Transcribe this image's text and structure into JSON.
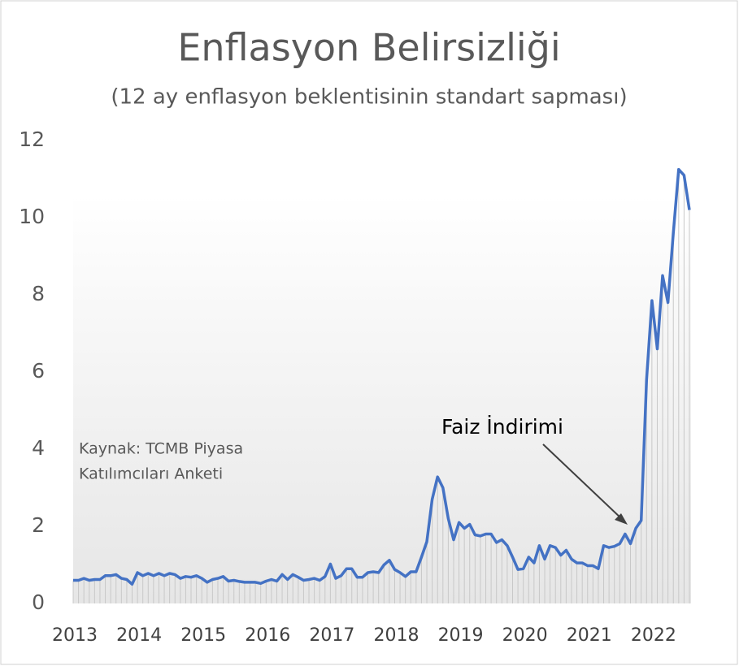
{
  "chart_data": {
    "type": "line",
    "title": "Enflasyon Belirsizliği",
    "subtitle": "(12 ay enflasyon beklentisinin standart sapması)",
    "source": [
      "Kaynak: TCMB Piyasa",
      "Katılımcıları Anketi"
    ],
    "annotation": "Faiz İndirimi",
    "color": "#4472c4",
    "ylim": [
      0,
      12
    ],
    "yticks": [
      0,
      2,
      4,
      6,
      8,
      10,
      12
    ],
    "categories": [
      "2013",
      null,
      null,
      null,
      null,
      null,
      null,
      null,
      null,
      null,
      null,
      null,
      "2014",
      null,
      null,
      null,
      null,
      null,
      null,
      null,
      null,
      null,
      null,
      null,
      "2015",
      null,
      null,
      null,
      null,
      null,
      null,
      null,
      null,
      null,
      null,
      null,
      "2016",
      null,
      null,
      null,
      null,
      null,
      null,
      null,
      null,
      null,
      null,
      null,
      "2017",
      null,
      null,
      null,
      null,
      null,
      null,
      null,
      null,
      null,
      null,
      null,
      "2018",
      null,
      null,
      null,
      null,
      null,
      null,
      null,
      null,
      null,
      null,
      null,
      "2019",
      null,
      null,
      null,
      null,
      null,
      null,
      null,
      null,
      null,
      null,
      null,
      "2020",
      null,
      null,
      null,
      null,
      null,
      null,
      null,
      null,
      null,
      null,
      null,
      "2021",
      null,
      null,
      null,
      null,
      null,
      null,
      null,
      null,
      null,
      null,
      null,
      "2022",
      null,
      null,
      null,
      null,
      null,
      null,
      null
    ],
    "values": [
      0.6,
      0.6,
      0.65,
      0.6,
      0.62,
      0.62,
      0.72,
      0.72,
      0.75,
      0.65,
      0.62,
      0.5,
      0.8,
      0.72,
      0.78,
      0.72,
      0.78,
      0.72,
      0.78,
      0.75,
      0.65,
      0.7,
      0.68,
      0.72,
      0.65,
      0.55,
      0.62,
      0.65,
      0.7,
      0.58,
      0.6,
      0.57,
      0.55,
      0.55,
      0.55,
      0.52,
      0.58,
      0.62,
      0.58,
      0.75,
      0.62,
      0.75,
      0.68,
      0.6,
      0.62,
      0.65,
      0.6,
      0.7,
      1.02,
      0.65,
      0.72,
      0.9,
      0.9,
      0.68,
      0.68,
      0.8,
      0.82,
      0.8,
      1.0,
      1.12,
      0.88,
      0.8,
      0.7,
      0.82,
      0.82,
      1.2,
      1.6,
      2.7,
      3.28,
      3.0,
      2.2,
      1.65,
      2.1,
      1.95,
      2.05,
      1.78,
      1.75,
      1.8,
      1.8,
      1.58,
      1.65,
      1.5,
      1.2,
      0.88,
      0.9,
      1.2,
      1.05,
      1.5,
      1.15,
      1.5,
      1.45,
      1.25,
      1.38,
      1.15,
      1.05,
      1.05,
      0.98,
      0.98,
      0.9,
      1.5,
      1.45,
      1.48,
      1.55,
      1.8,
      1.55,
      1.95,
      2.15,
      5.8,
      7.85,
      6.6,
      8.5,
      7.8,
      9.6,
      11.25,
      11.1,
      10.2
    ]
  }
}
